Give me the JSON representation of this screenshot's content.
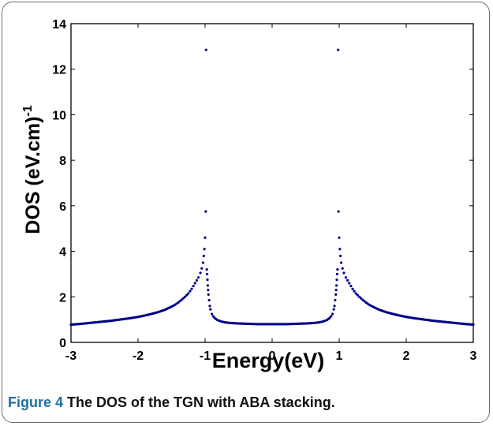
{
  "caption": {
    "label": "Figure 4",
    "text": "The DOS of the TGN with ABA stacking."
  },
  "chart_data": {
    "type": "scatter",
    "title": "",
    "xlabel": "Energy(eV)",
    "ylabel": "DOS (eV.cm)",
    "ylabel_superscript": "-1",
    "xlim": [
      -3,
      3
    ],
    "ylim": [
      0,
      14
    ],
    "xticks": [
      "-3",
      "-2",
      "-1",
      "0",
      "1",
      "2",
      "3"
    ],
    "yticks": [
      "0",
      "2",
      "4",
      "6",
      "8",
      "10",
      "12",
      "14"
    ],
    "grid": false,
    "legend": "none",
    "marker_color": "#00008b",
    "series": [
      {
        "x": [
          -3.0,
          -2.9,
          -2.8,
          -2.7,
          -2.6,
          -2.5,
          -2.4,
          -2.3,
          -2.2,
          -2.1,
          -2.0,
          -1.9,
          -1.8,
          -1.7,
          -1.6,
          -1.5,
          -1.45,
          -1.4,
          -1.35,
          -1.3,
          -1.25,
          -1.2,
          -1.15,
          -1.1,
          -1.07,
          -1.05,
          -1.03,
          -1.02,
          -1.01,
          -1.0,
          -0.99,
          -0.985,
          -0.975,
          -0.97,
          -0.965,
          -0.96,
          -0.955,
          -0.95,
          -0.94,
          -0.93,
          -0.92,
          -0.9,
          -0.88,
          -0.86,
          -0.84,
          -0.82,
          -0.8,
          -0.75,
          -0.7,
          -0.65,
          -0.6,
          -0.5,
          -0.4,
          -0.3,
          -0.2,
          -0.1,
          0.0,
          0.1,
          0.2,
          0.3,
          0.4,
          0.5,
          0.6,
          0.65,
          0.7,
          0.75,
          0.8,
          0.82,
          0.84,
          0.86,
          0.88,
          0.9,
          0.92,
          0.93,
          0.94,
          0.95,
          0.955,
          0.96,
          0.965,
          0.97,
          0.975,
          0.985,
          0.99,
          1.0,
          1.01,
          1.02,
          1.03,
          1.05,
          1.07,
          1.1,
          1.15,
          1.2,
          1.25,
          1.3,
          1.35,
          1.4,
          1.45,
          1.5,
          1.6,
          1.7,
          1.8,
          1.9,
          2.0,
          2.1,
          2.2,
          2.3,
          2.4,
          2.5,
          2.6,
          2.7,
          2.8,
          2.9,
          3.0
        ],
        "y": [
          0.78,
          0.8,
          0.83,
          0.86,
          0.89,
          0.92,
          0.95,
          0.99,
          1.03,
          1.07,
          1.12,
          1.18,
          1.25,
          1.33,
          1.43,
          1.57,
          1.65,
          1.75,
          1.87,
          2.0,
          2.15,
          2.35,
          2.6,
          2.85,
          3.05,
          3.25,
          3.5,
          3.8,
          4.1,
          4.6,
          5.75,
          12.85,
          3.2,
          3.0,
          2.75,
          2.5,
          2.3,
          2.1,
          1.85,
          1.6,
          1.45,
          1.25,
          1.15,
          1.08,
          1.03,
          0.99,
          0.96,
          0.91,
          0.88,
          0.86,
          0.85,
          0.83,
          0.82,
          0.81,
          0.8,
          0.8,
          0.8,
          0.8,
          0.8,
          0.81,
          0.82,
          0.83,
          0.85,
          0.86,
          0.88,
          0.91,
          0.96,
          0.99,
          1.03,
          1.08,
          1.15,
          1.25,
          1.45,
          1.6,
          1.85,
          2.1,
          2.3,
          2.5,
          2.75,
          3.0,
          3.2,
          12.85,
          5.75,
          4.6,
          4.1,
          3.8,
          3.5,
          3.25,
          3.05,
          2.85,
          2.6,
          2.35,
          2.15,
          2.0,
          1.87,
          1.75,
          1.65,
          1.57,
          1.43,
          1.33,
          1.25,
          1.18,
          1.12,
          1.07,
          1.03,
          0.99,
          0.95,
          0.92,
          0.89,
          0.86,
          0.83,
          0.8,
          0.78
        ]
      }
    ]
  }
}
